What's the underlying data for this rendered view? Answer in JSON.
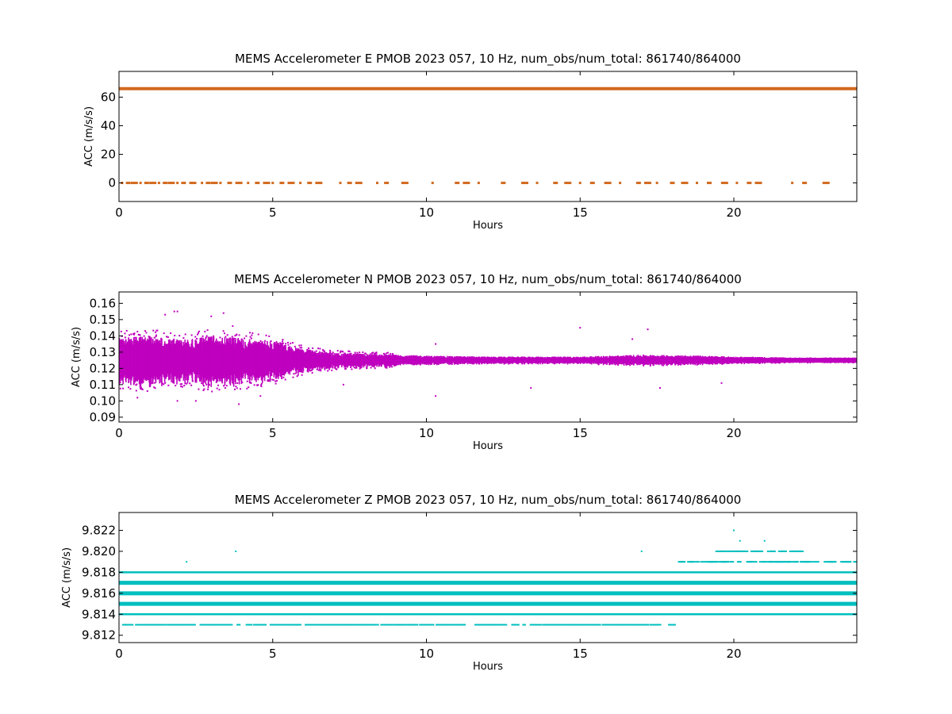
{
  "chart_data": [
    {
      "type": "scatter",
      "title": "MEMS Accelerometer E PMOB 2023 057, 10 Hz, num_obs/num_total: 861740/864000",
      "xlabel": "Hours",
      "ylabel": "ACC (m/s/s)",
      "xlim": [
        0,
        24
      ],
      "ylim": [
        -13,
        78
      ],
      "xticks": [
        "0",
        "5",
        "10",
        "15",
        "20"
      ],
      "yticks": [
        "0",
        "20",
        "40",
        "60"
      ],
      "color": "#d2691e",
      "series": [
        {
          "bands": [
            {
              "y": 65.9,
              "x_range": [
                0,
                24
              ],
              "density": "continuous"
            }
          ],
          "sparse_points_y": 0,
          "sparse_points_x": [
            0.1,
            0.3,
            0.5,
            0.7,
            0.9,
            1.1,
            1.3,
            1.5,
            1.7,
            1.9,
            2.1,
            2.4,
            2.7,
            2.9,
            3.1,
            3.3,
            3.6,
            3.9,
            4.2,
            4.5,
            4.8,
            5.0,
            5.3,
            5.6,
            5.9,
            6.2,
            6.5,
            7.2,
            7.5,
            7.8,
            8.4,
            8.7,
            9.3,
            10.2,
            11.0,
            11.3,
            11.7,
            12.5,
            13.2,
            13.6,
            14.2,
            14.6,
            15.0,
            15.4,
            15.9,
            16.3,
            16.9,
            17.2,
            17.5,
            18.0,
            18.4,
            18.8,
            19.2,
            19.7,
            20.1,
            20.5,
            20.8,
            21.9,
            22.3,
            23.0
          ]
        }
      ]
    },
    {
      "type": "scatter",
      "title": "MEMS Accelerometer N PMOB 2023 057, 10 Hz, num_obs/num_total: 861740/864000",
      "xlabel": "Hours",
      "ylabel": "ACC (m/s/s)",
      "xlim": [
        0,
        24
      ],
      "ylim": [
        0.087,
        0.167
      ],
      "xticks": [
        "0",
        "5",
        "10",
        "15",
        "20"
      ],
      "yticks": [
        "0.09",
        "0.10",
        "0.11",
        "0.12",
        "0.13",
        "0.14",
        "0.15",
        "0.16"
      ],
      "color": "#bf00bf",
      "series": [
        {
          "center": 0.125,
          "spread_profile": [
            {
              "x": 0,
              "half_width": 0.012
            },
            {
              "x": 1,
              "half_width": 0.013
            },
            {
              "x": 2,
              "half_width": 0.011
            },
            {
              "x": 3,
              "half_width": 0.013
            },
            {
              "x": 4,
              "half_width": 0.012
            },
            {
              "x": 5,
              "half_width": 0.01
            },
            {
              "x": 6,
              "half_width": 0.006
            },
            {
              "x": 7,
              "half_width": 0.004
            },
            {
              "x": 8,
              "half_width": 0.0035
            },
            {
              "x": 9,
              "half_width": 0.003
            },
            {
              "x": 10,
              "half_width": 0.0025
            },
            {
              "x": 12,
              "half_width": 0.002
            },
            {
              "x": 15,
              "half_width": 0.002
            },
            {
              "x": 17,
              "half_width": 0.003
            },
            {
              "x": 19,
              "half_width": 0.0025
            },
            {
              "x": 20,
              "half_width": 0.002
            },
            {
              "x": 22,
              "half_width": 0.0015
            },
            {
              "x": 24,
              "half_width": 0.0015
            }
          ],
          "outliers": [
            {
              "x": 1.5,
              "y": 0.153
            },
            {
              "x": 1.8,
              "y": 0.155
            },
            {
              "x": 1.9,
              "y": 0.155
            },
            {
              "x": 3.0,
              "y": 0.152
            },
            {
              "x": 3.4,
              "y": 0.154
            },
            {
              "x": 3.7,
              "y": 0.146
            },
            {
              "x": 2.5,
              "y": 0.1
            },
            {
              "x": 3.9,
              "y": 0.098
            },
            {
              "x": 1.9,
              "y": 0.1
            },
            {
              "x": 0.6,
              "y": 0.102
            },
            {
              "x": 4.6,
              "y": 0.103
            },
            {
              "x": 10.3,
              "y": 0.103
            },
            {
              "x": 15.0,
              "y": 0.145
            },
            {
              "x": 17.2,
              "y": 0.144
            },
            {
              "x": 7.3,
              "y": 0.11
            },
            {
              "x": 13.4,
              "y": 0.108
            },
            {
              "x": 17.6,
              "y": 0.108
            },
            {
              "x": 19.6,
              "y": 0.111
            },
            {
              "x": 10.3,
              "y": 0.135
            },
            {
              "x": 16.7,
              "y": 0.138
            }
          ]
        }
      ]
    },
    {
      "type": "scatter",
      "title": "MEMS Accelerometer Z PMOB 2023 057, 10 Hz, num_obs/num_total: 861740/864000",
      "xlabel": "Hours",
      "ylabel": "ACC (m/s/s)",
      "xlim": [
        0,
        24
      ],
      "ylim": [
        9.8113,
        9.8237
      ],
      "xticks": [
        "0",
        "5",
        "10",
        "15",
        "20"
      ],
      "yticks": [
        "9.812",
        "9.814",
        "9.816",
        "9.818",
        "9.820",
        "9.822"
      ],
      "color": "#00bfbf",
      "series": [
        {
          "bands": [
            {
              "y": 9.817,
              "x_range": [
                0,
                24
              ],
              "density": "heavy"
            },
            {
              "y": 9.816,
              "x_range": [
                0,
                24
              ],
              "density": "heavy"
            },
            {
              "y": 9.815,
              "x_range": [
                0,
                24
              ],
              "density": "heavy"
            },
            {
              "y": 9.818,
              "x_range": [
                0,
                24
              ],
              "density": "medium"
            },
            {
              "y": 9.814,
              "x_range": [
                0,
                24
              ],
              "density": "medium"
            },
            {
              "y": 9.813,
              "x_range": [
                0.1,
                18.0
              ],
              "density": "sparse"
            },
            {
              "y": 9.819,
              "x_range": [
                18.0,
                24.0
              ],
              "density": "sparse"
            },
            {
              "y": 9.82,
              "x_range": [
                19.4,
                22.1
              ],
              "density": "sparse"
            }
          ],
          "outliers": [
            {
              "x": 20.0,
              "y": 9.822
            },
            {
              "x": 20.2,
              "y": 9.821
            },
            {
              "x": 21.0,
              "y": 9.821
            },
            {
              "x": 3.8,
              "y": 9.82
            },
            {
              "x": 17.0,
              "y": 9.82
            },
            {
              "x": 2.2,
              "y": 9.819
            }
          ]
        }
      ]
    }
  ]
}
